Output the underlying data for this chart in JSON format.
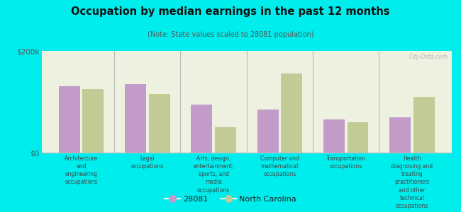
{
  "title": "Occupation by median earnings in the past 12 months",
  "subtitle": "(Note: State values scaled to 28081 population)",
  "background_color": "#00eded",
  "plot_bg_color": "#edf2e0",
  "categories": [
    "Architecture\nand\nengineering\noccupations",
    "Legal\noccupations",
    "Arts, design,\nentertainment,\nsports, and\nmedia\noccupations",
    "Computer and\nmathematical\noccupations",
    "Transportation\noccupations",
    "Health\ndiagnosing and\ntreating\npractitioners\nand other\ntechnical\noccupations"
  ],
  "values_28081": [
    130000,
    135000,
    95000,
    85000,
    65000,
    70000
  ],
  "values_nc": [
    125000,
    115000,
    50000,
    155000,
    60000,
    110000
  ],
  "bar_color_28081": "#c39bc9",
  "bar_color_nc": "#c0cb96",
  "ylim": [
    0,
    200000
  ],
  "ytick_labels": [
    "$0",
    "$200k"
  ],
  "legend_label_28081": "28081",
  "legend_label_nc": "North Carolina",
  "watermark": "City-Data.com"
}
